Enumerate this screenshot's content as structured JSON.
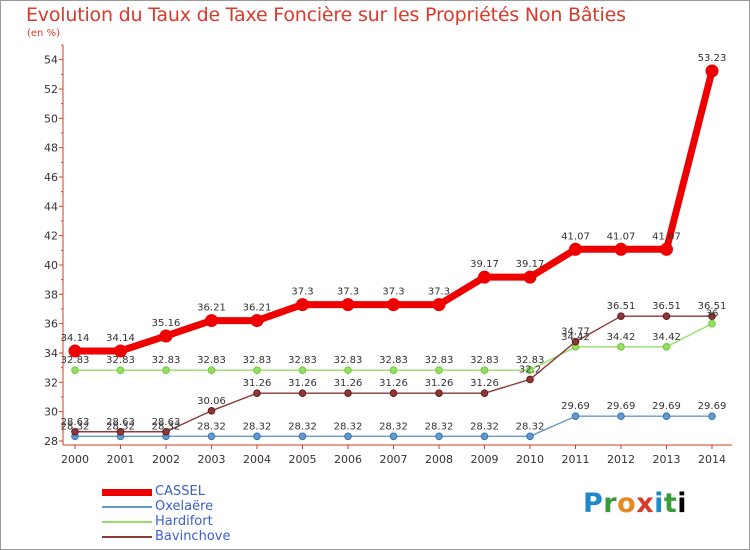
{
  "title": "Evolution du Taux de Taxe Foncière sur les Propriétés Non Bâties",
  "subtitle": "(en %)",
  "logo_text": "Proxiti",
  "logo_letters": [
    "P",
    "r",
    "o",
    "x",
    "i",
    "t",
    "i"
  ],
  "chart_data": {
    "type": "line",
    "x": [
      "2000",
      "2001",
      "2002",
      "2003",
      "2004",
      "2005",
      "2006",
      "2007",
      "2008",
      "2009",
      "2010",
      "2011",
      "2012",
      "2013",
      "2014"
    ],
    "ylim": [
      28,
      55
    ],
    "yticks": [
      28,
      30,
      32,
      34,
      36,
      38,
      40,
      42,
      44,
      46,
      48,
      50,
      52,
      54
    ],
    "ylabel": "(en %)",
    "series": [
      {
        "name": "CASSEL",
        "color": "#ee0000",
        "values": [
          34.14,
          34.14,
          35.16,
          36.21,
          36.21,
          37.3,
          37.3,
          37.3,
          37.3,
          39.17,
          39.17,
          41.07,
          41.07,
          41.07,
          53.23
        ],
        "labels": [
          "34.14",
          "34.14",
          "35.16",
          "36.21",
          "36.21",
          "37.3",
          "37.3",
          "37.3",
          "37.3",
          "39.17",
          "39.17",
          "41.07",
          "41.07",
          "41.07",
          "53.23"
        ]
      },
      {
        "name": "Oxelaëre",
        "color": "#6699cc",
        "marker": "#2e75b6",
        "values": [
          28.32,
          28.32,
          28.32,
          28.32,
          28.32,
          28.32,
          28.32,
          28.32,
          28.32,
          28.32,
          28.32,
          29.69,
          29.69,
          29.69,
          29.69
        ],
        "labels": [
          "28.32",
          "28.32",
          "28.32",
          "28.32",
          "28.32",
          "28.32",
          "28.32",
          "28.32",
          "28.32",
          "28.32",
          "28.32",
          "29.69",
          "29.69",
          "29.69",
          "29.69"
        ]
      },
      {
        "name": "Hardifort",
        "color": "#99dd66",
        "marker": "#66cc33",
        "values": [
          32.83,
          32.83,
          32.83,
          32.83,
          32.83,
          32.83,
          32.83,
          32.83,
          32.83,
          32.83,
          32.83,
          34.42,
          34.42,
          34.42,
          36
        ],
        "labels": [
          "32.83",
          "32.83",
          "32.83",
          "32.83",
          "32.83",
          "32.83",
          "32.83",
          "32.83",
          "32.83",
          "32.83",
          "32.83",
          "34.42",
          "34.42",
          "34.42",
          "36"
        ]
      },
      {
        "name": "Bavinchove",
        "color": "#8b3a3a",
        "marker": "#661a1a",
        "values": [
          28.63,
          28.63,
          28.63,
          30.06,
          31.26,
          31.26,
          31.26,
          31.26,
          31.26,
          31.26,
          32.2,
          34.77,
          36.51,
          36.51,
          36.51
        ],
        "labels": [
          "28.63",
          "28.63",
          "28.63",
          "30.06",
          "31.26",
          "31.26",
          "31.26",
          "31.26",
          "31.26",
          "31.26",
          "32.2",
          "34.77",
          "36.51",
          "36.51",
          "36.51"
        ]
      }
    ],
    "grid": false,
    "legend": "bottom-left"
  }
}
